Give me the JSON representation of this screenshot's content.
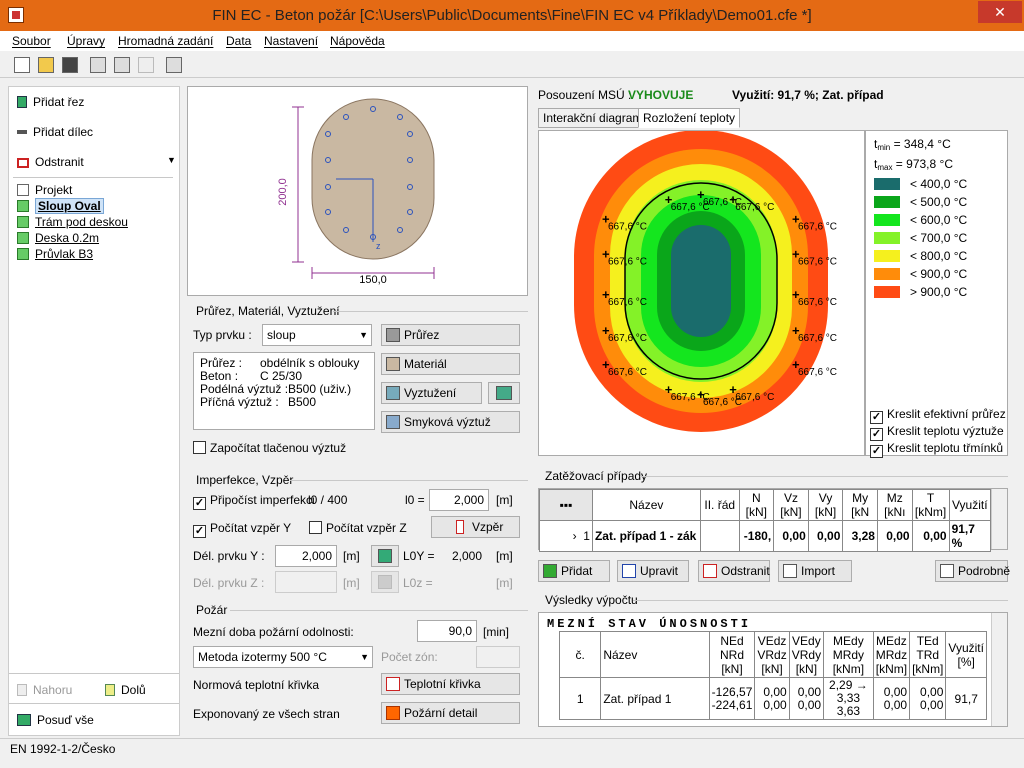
{
  "window": {
    "title": "FIN EC - Beton požár [C:\\Users\\Public\\Documents\\Fine\\FIN EC v4 Příklady\\Demo01.cfe *]",
    "close": "✕"
  },
  "menu": [
    "Soubor",
    "Úpravy",
    "Hromadná zadání",
    "Data",
    "Nastavení",
    "Nápověda"
  ],
  "sidebar": {
    "add_section": "Přidat řez",
    "add_member": "Přidat dílec",
    "remove": "Odstranit",
    "tree": [
      "Projekt",
      "Sloup Oval",
      "Trám pod deskou",
      "Deska 0.2m",
      "Průvlak B3"
    ],
    "up": "Nahoru",
    "down": "Dolů",
    "assess_all": "Posuď vše"
  },
  "section_view": {
    "dim_v": "200,0",
    "dim_h": "150,0",
    "axis_z": "z"
  },
  "props": {
    "group_title": "Průřez, Materiál, Vyztužení",
    "type_label": "Typ prvku :",
    "type_value": "sloup",
    "btn_section": "Průřez",
    "btn_material": "Materiál",
    "btn_reinforcement": "Vyztužení",
    "btn_shear": "Smyková výztuž",
    "info": [
      [
        "Průřez :",
        "obdélník s oblouky"
      ],
      [
        "Beton :",
        "C 25/30"
      ],
      [
        "Podélná výztuž :",
        "B500 (uživ.)"
      ],
      [
        "Příčná výztuž :",
        "B500"
      ]
    ],
    "compressed": "Započítat tlačenou výztuž"
  },
  "imperfection": {
    "group_title": "Imperfekce, Vzpěr",
    "add_imp": "Připočíst imperfekci",
    "l0_frac": "l0 / 400",
    "l0_label": "l0 =",
    "l0_value": "2,000",
    "unit_m": "[m]",
    "buck_y": "Počítat vzpěr Y",
    "buck_z": "Počítat vzpěr Z",
    "btn_buckling": "Vzpěr",
    "len_y_label": "Dél. prvku Y :",
    "len_y": "2,000",
    "l0y_label": "L0Y =",
    "l0y_value": "2,000",
    "len_z_label": "Dél. prvku Z :",
    "l0z_label": "L0z ="
  },
  "fire": {
    "group_title": "Požár",
    "resistance_label": "Mezní doba požární odolnosti:",
    "resistance_value": "90,0",
    "unit_min": "[min]",
    "method": "Metoda izotermy 500 °C",
    "zones_label": "Počet zón:",
    "curve_label": "Normová teplotní křivka",
    "btn_curve": "Teplotní křivka",
    "exposure_label": "Exponovaný ze všech stran",
    "btn_detail": "Požární detail"
  },
  "result_header": {
    "label": "Posouzení MSÚ :",
    "status": "VYHOVUJE",
    "usage": "Využití: 91,7 %; Zat. případ"
  },
  "tabs": [
    "Interakční diagram",
    "Rozložení teploty"
  ],
  "chart_data": {
    "type": "heatmap",
    "tmin": "348,4 °C",
    "tmax": "973,8 °C",
    "point_label": "667,6 °C",
    "legend": [
      {
        "label": "< 400,0 °C",
        "color": "#1a6c6c"
      },
      {
        "label": "< 500,0 °C",
        "color": "#0aa61a"
      },
      {
        "label": "< 600,0 °C",
        "color": "#14e61e"
      },
      {
        "label": "< 700,0 °C",
        "color": "#84f228"
      },
      {
        "label": "< 800,0 °C",
        "color": "#f5f01e"
      },
      {
        "label": "< 900,0 °C",
        "color": "#ff8c0a"
      },
      {
        "label": "> 900,0 °C",
        "color": "#ff4b14"
      }
    ]
  },
  "draw_options": [
    "Kreslit efektivní průřez",
    "Kreslit teplotu výztuže",
    "Kreslit teplotu třmínků"
  ],
  "loads": {
    "group_title": "Zatěžovací případy",
    "headers": [
      "Název",
      "II. řád",
      "N [kN]",
      "Vz [kN]",
      "Vy [kN]",
      "My [kN",
      "Mz [kNı",
      "T [kNm]",
      "Využití"
    ],
    "row": {
      "idx": "1",
      "name": "Zat. případ 1 - zák",
      "n": "-180,",
      "vz": "0,00",
      "vy": "0,00",
      "my": "3,28",
      "mz": "0,00",
      "t": "0,00",
      "usage": "91,7 %"
    },
    "btn_add": "Přidat",
    "btn_edit": "Upravit",
    "btn_remove": "Odstranit",
    "btn_import": "Import",
    "btn_detail": "Podrobně"
  },
  "results": {
    "group_title": "Výsledky výpočtu",
    "title": "MEZNÍ STAV ÚNOSNOSTI",
    "h": [
      "č.",
      "Název",
      "NEd NRd [kN]",
      "VEdz VRdz [kN]",
      "VEdy VRdy [kN]",
      "MEdy MRdy [kNm]",
      "MEdz MRdz [kNm]",
      "TEd TRd [kNm]",
      "Využití [%]"
    ],
    "r": [
      "1",
      "Zat. případ 1",
      "-126,57",
      "-224,61",
      "0,00",
      "0,00",
      "0,00",
      "0,00",
      "2,29 → 3,33",
      "3,63",
      "0,00",
      "0,00",
      "0,00",
      "0,00",
      "91,7"
    ]
  },
  "status": "EN 1992-1-2/Česko"
}
